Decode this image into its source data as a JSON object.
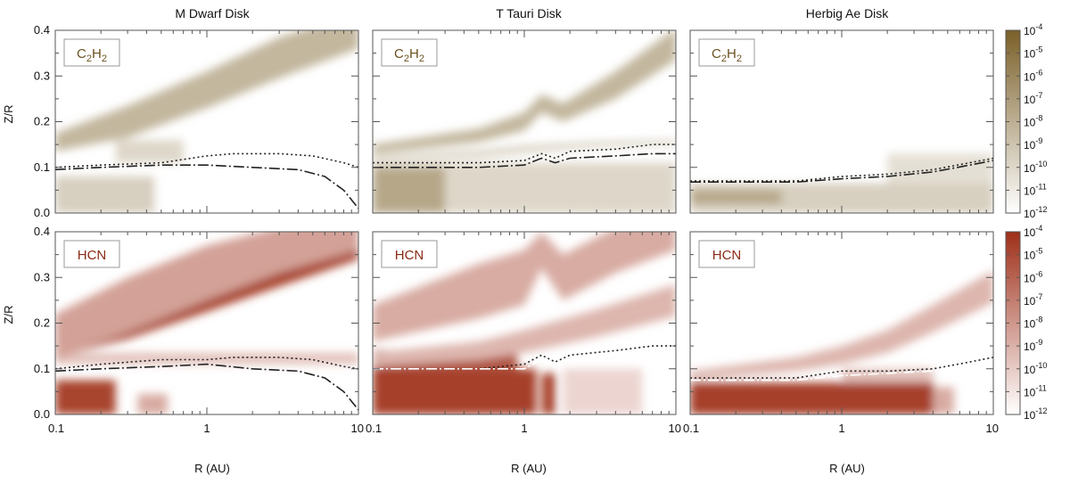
{
  "chart_data": {
    "type": "heatmap",
    "columns": [
      "M Dwarf Disk",
      "T Tauri Disk",
      "Herbig Ae Disk"
    ],
    "xlabel": "R (AU)",
    "ylabel": "Z/R",
    "xscale": "log",
    "xlim": [
      0.1,
      10
    ],
    "ylim": [
      0.0,
      0.4
    ],
    "x_ticks": [
      "0.1",
      "1",
      "10"
    ],
    "y_ticks": [
      "0.0",
      "0.1",
      "0.2",
      "0.3",
      "0.4"
    ],
    "colorbar_ticks": [
      "-4",
      "-5",
      "-6",
      "-7",
      "-8",
      "-9",
      "-10",
      "-11",
      "-12"
    ],
    "colorbar_base": "10",
    "rows": [
      {
        "species": "C2H2",
        "label_main1": "C",
        "label_sub1": "2",
        "label_main2": "H",
        "label_sub2": "2",
        "color": "#7a5f28",
        "label_color": "#6b5220"
      },
      {
        "species": "HCN",
        "label_main1": "HCN",
        "color": "#9e2f18",
        "label_color": "#8a2a14"
      }
    ],
    "panels": [
      {
        "row": 0,
        "col": 0,
        "bands": [
          {
            "x": [
              0.1,
              0.3,
              1,
              3,
              10
            ],
            "y": [
              0.15,
              0.19,
              0.26,
              0.32,
              0.39
            ],
            "w": [
              0.02,
              0.045,
              0.05,
              0.05,
              0.045
            ],
            "level": 0.92
          },
          {
            "x": [
              0.1,
              0.3,
              1,
              3,
              10
            ],
            "y": [
              0.155,
              0.2,
              0.27,
              0.34,
              0.4
            ],
            "w": [
              0.04,
              0.07,
              0.08,
              0.09,
              0.08
            ],
            "level": 0.45
          }
        ],
        "blobs": [
          {
            "x0": 0.1,
            "x1": 0.45,
            "y0": 0.0,
            "y1": 0.08,
            "level": 0.3
          },
          {
            "x0": 0.25,
            "x1": 0.7,
            "y0": 0.11,
            "y1": 0.16,
            "level": 0.25
          }
        ],
        "dotted": {
          "x": [
            0.1,
            0.2,
            0.5,
            1,
            1.5,
            3,
            5,
            8,
            10
          ],
          "y": [
            0.1,
            0.105,
            0.11,
            0.125,
            0.13,
            0.13,
            0.125,
            0.11,
            0.1
          ]
        },
        "dashdot": {
          "x": [
            0.1,
            0.2,
            0.5,
            1,
            2,
            4,
            6,
            8,
            10
          ],
          "y": [
            0.095,
            0.1,
            0.105,
            0.105,
            0.1,
            0.095,
            0.08,
            0.05,
            0.01
          ]
        }
      },
      {
        "row": 0,
        "col": 1,
        "bands": [
          {
            "x": [
              0.1,
              0.5,
              1,
              1.3,
              1.8,
              4,
              10
            ],
            "y": [
              0.14,
              0.17,
              0.2,
              0.24,
              0.22,
              0.28,
              0.37
            ],
            "w": [
              0.02,
              0.03,
              0.04,
              0.04,
              0.04,
              0.06,
              0.07
            ],
            "level": 0.45
          },
          {
            "x": [
              0.1,
              0.5,
              1,
              3,
              10
            ],
            "y": [
              0.12,
              0.13,
              0.14,
              0.15,
              0.155
            ],
            "w": [
              0.012,
              0.015,
              0.015,
              0.012,
              0.01
            ],
            "level": 0.3
          }
        ],
        "blobs": [
          {
            "x0": 0.1,
            "x1": 10,
            "y0": 0.0,
            "y1": 0.11,
            "level": 0.25
          },
          {
            "x0": 0.1,
            "x1": 0.3,
            "y0": 0.0,
            "y1": 0.1,
            "level": 0.55
          }
        ],
        "dotted": {
          "x": [
            0.1,
            0.5,
            1,
            1.3,
            1.6,
            2,
            4,
            7,
            10
          ],
          "y": [
            0.11,
            0.11,
            0.115,
            0.13,
            0.12,
            0.135,
            0.14,
            0.15,
            0.15
          ]
        },
        "dashdot": {
          "x": [
            0.1,
            0.5,
            1,
            1.3,
            1.6,
            2,
            4,
            7,
            10
          ],
          "y": [
            0.1,
            0.1,
            0.105,
            0.12,
            0.11,
            0.12,
            0.125,
            0.13,
            0.13
          ]
        }
      },
      {
        "row": 0,
        "col": 2,
        "bands": [],
        "blobs": [
          {
            "x0": 0.1,
            "x1": 10,
            "y0": 0.0,
            "y1": 0.065,
            "level": 0.3
          },
          {
            "x0": 0.1,
            "x1": 0.4,
            "y0": 0.02,
            "y1": 0.05,
            "level": 0.55
          },
          {
            "x0": 2,
            "x1": 10,
            "y0": 0.065,
            "y1": 0.13,
            "level": 0.2
          }
        ],
        "dotted": {
          "x": [
            0.1,
            0.5,
            1,
            2,
            4,
            7,
            10
          ],
          "y": [
            0.07,
            0.07,
            0.08,
            0.085,
            0.095,
            0.11,
            0.12
          ]
        },
        "dashdot": {
          "x": [
            0.1,
            0.5,
            1,
            2,
            4,
            7,
            10
          ],
          "y": [
            0.068,
            0.068,
            0.075,
            0.08,
            0.09,
            0.105,
            0.115
          ]
        }
      },
      {
        "row": 1,
        "col": 0,
        "bands": [
          {
            "x": [
              0.1,
              0.3,
              1,
              3,
              10
            ],
            "y": [
              0.14,
              0.19,
              0.26,
              0.32,
              0.38
            ],
            "w": [
              0.03,
              0.05,
              0.07,
              0.08,
              0.08
            ],
            "level": 0.9
          },
          {
            "x": [
              0.1,
              0.3,
              1,
              3,
              10
            ],
            "y": [
              0.17,
              0.24,
              0.31,
              0.36,
              0.4
            ],
            "w": [
              0.1,
              0.12,
              0.12,
              0.1,
              0.08
            ],
            "level": 0.45
          }
        ],
        "blobs": [
          {
            "x0": 0.1,
            "x1": 0.25,
            "y0": 0.0,
            "y1": 0.075,
            "level": 0.9
          },
          {
            "x0": 0.35,
            "x1": 0.55,
            "y0": 0.0,
            "y1": 0.045,
            "level": 0.4
          },
          {
            "x0": 0.1,
            "x1": 10,
            "y0": 0.11,
            "y1": 0.135,
            "level": 0.3
          }
        ],
        "dotted": {
          "x": [
            0.1,
            0.2,
            0.5,
            1,
            1.5,
            3,
            5,
            8,
            10
          ],
          "y": [
            0.1,
            0.11,
            0.12,
            0.12,
            0.125,
            0.125,
            0.12,
            0.105,
            0.1
          ]
        },
        "dashdot": {
          "x": [
            0.1,
            0.2,
            0.5,
            1,
            2,
            4,
            6,
            8,
            10
          ],
          "y": [
            0.095,
            0.1,
            0.105,
            0.11,
            0.1,
            0.095,
            0.08,
            0.05,
            0.01
          ]
        }
      },
      {
        "row": 1,
        "col": 1,
        "bands": [
          {
            "x": [
              0.1,
              0.5,
              1,
              1.3,
              1.8,
              4,
              10
            ],
            "y": [
              0.2,
              0.27,
              0.3,
              0.36,
              0.3,
              0.36,
              0.4
            ],
            "w": [
              0.08,
              0.12,
              0.12,
              0.08,
              0.1,
              0.1,
              0.08
            ],
            "level": 0.4
          },
          {
            "x": [
              0.1,
              0.5,
              1,
              3,
              10
            ],
            "y": [
              0.12,
              0.14,
              0.16,
              0.2,
              0.25
            ],
            "w": [
              0.03,
              0.04,
              0.05,
              0.06,
              0.07
            ],
            "level": 0.35
          }
        ],
        "blobs": [
          {
            "x0": 0.1,
            "x1": 1.2,
            "y0": 0.0,
            "y1": 0.1,
            "level": 0.92
          },
          {
            "x0": 1.3,
            "x1": 1.6,
            "y0": 0.0,
            "y1": 0.09,
            "level": 0.9
          },
          {
            "x0": 0.1,
            "x1": 0.9,
            "y0": 0.1,
            "y1": 0.14,
            "level": 0.8
          },
          {
            "x0": 1.8,
            "x1": 6,
            "y0": 0.0,
            "y1": 0.1,
            "level": 0.2
          }
        ],
        "dotted": {
          "x": [
            0.1,
            0.5,
            1,
            1.3,
            1.6,
            2,
            4,
            7,
            10
          ],
          "y": [
            0.1,
            0.1,
            0.11,
            0.13,
            0.115,
            0.13,
            0.14,
            0.15,
            0.15
          ]
        },
        "dashdot": {
          "x": [
            0.1,
            0.5,
            1,
            1.3,
            1.6,
            2,
            4,
            7,
            10
          ],
          "y": [
            0.1,
            0.1,
            0.1,
            0.12,
            0.105,
            0.12,
            0.125,
            0.13,
            0.13
          ]
        }
      },
      {
        "row": 1,
        "col": 2,
        "bands": [
          {
            "x": [
              0.1,
              0.5,
              1,
              2,
              4,
              10
            ],
            "y": [
              0.085,
              0.11,
              0.13,
              0.16,
              0.21,
              0.28
            ],
            "w": [
              0.02,
              0.03,
              0.04,
              0.05,
              0.06,
              0.07
            ],
            "level": 0.35
          }
        ],
        "blobs": [
          {
            "x0": 0.1,
            "x1": 4,
            "y0": 0.0,
            "y1": 0.07,
            "level": 0.92
          },
          {
            "x0": 4,
            "x1": 5.5,
            "y0": 0.0,
            "y1": 0.06,
            "level": 0.4
          },
          {
            "x0": 1,
            "x1": 4,
            "y0": 0.07,
            "y1": 0.1,
            "level": 0.3
          }
        ],
        "dotted": {
          "x": [
            0.1,
            0.5,
            1,
            2,
            4,
            7,
            10
          ],
          "y": [
            0.08,
            0.08,
            0.095,
            0.095,
            0.1,
            0.115,
            0.125
          ]
        },
        "dashdot": {
          "x": [
            0.1,
            0.5,
            1,
            2,
            4,
            7,
            10
          ],
          "y": [
            0.075,
            0.075,
            0.085,
            0.09,
            0.095,
            0.105,
            0.11
          ]
        }
      }
    ]
  }
}
